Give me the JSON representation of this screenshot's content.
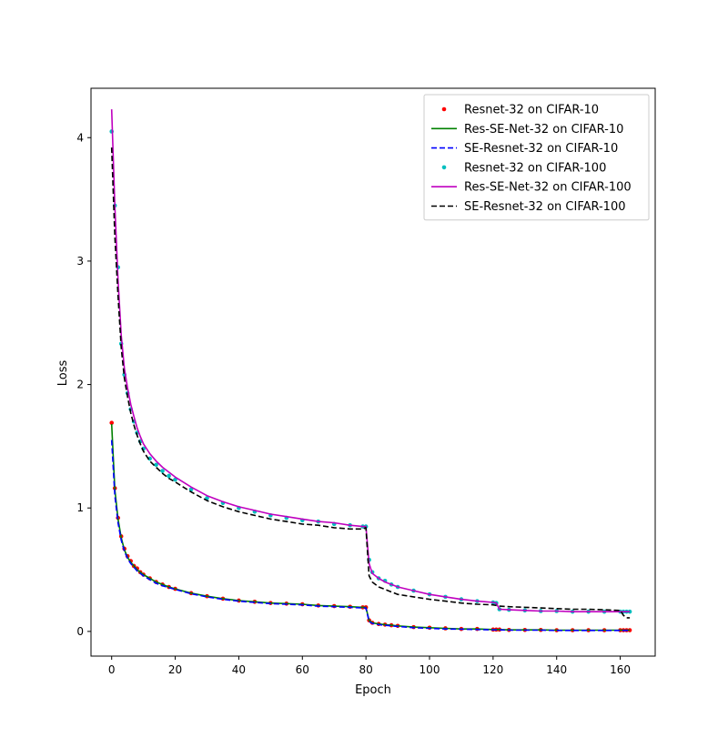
{
  "chart_data": {
    "type": "line",
    "title": "",
    "xlabel": "Epoch",
    "ylabel": "Loss",
    "xlim": [
      -6.5,
      171
    ],
    "ylim": [
      -0.2,
      4.4
    ],
    "xticks": [
      0,
      20,
      40,
      60,
      80,
      100,
      120,
      140,
      160
    ],
    "yticks": [
      0,
      1,
      2,
      3,
      4
    ],
    "grid": false,
    "legend_position": "top-right",
    "x": [
      0,
      1,
      2,
      3,
      4,
      5,
      6,
      7,
      8,
      9,
      10,
      12,
      14,
      16,
      18,
      20,
      25,
      30,
      35,
      40,
      45,
      50,
      55,
      60,
      65,
      70,
      75,
      79,
      80,
      81,
      82,
      84,
      86,
      88,
      90,
      95,
      100,
      105,
      110,
      115,
      120,
      121,
      122,
      125,
      130,
      135,
      140,
      145,
      150,
      155,
      160,
      161,
      162,
      163
    ],
    "series": [
      {
        "name": "Resnet-32 on CIFAR-10",
        "style": "dots",
        "color": "#ff0000",
        "values": [
          1.69,
          1.16,
          0.92,
          0.77,
          0.67,
          0.61,
          0.57,
          0.53,
          0.51,
          0.48,
          0.46,
          0.43,
          0.4,
          0.38,
          0.36,
          0.345,
          0.31,
          0.285,
          0.265,
          0.25,
          0.24,
          0.23,
          0.225,
          0.22,
          0.21,
          0.205,
          0.2,
          0.195,
          0.195,
          0.09,
          0.07,
          0.06,
          0.055,
          0.05,
          0.045,
          0.035,
          0.03,
          0.025,
          0.02,
          0.02,
          0.015,
          0.015,
          0.015,
          0.012,
          0.012,
          0.012,
          0.01,
          0.01,
          0.01,
          0.01,
          0.01,
          0.01,
          0.01,
          0.01
        ]
      },
      {
        "name": "Res-SE-Net-32 on CIFAR-10",
        "style": "solid",
        "color": "#008000",
        "values": [
          1.68,
          1.15,
          0.91,
          0.76,
          0.66,
          0.6,
          0.56,
          0.53,
          0.5,
          0.48,
          0.46,
          0.43,
          0.4,
          0.38,
          0.36,
          0.345,
          0.31,
          0.285,
          0.265,
          0.25,
          0.24,
          0.23,
          0.225,
          0.22,
          0.21,
          0.205,
          0.2,
          0.195,
          0.195,
          0.09,
          0.07,
          0.06,
          0.055,
          0.05,
          0.045,
          0.035,
          0.03,
          0.025,
          0.02,
          0.02,
          0.015,
          0.015,
          0.015,
          0.012,
          0.012,
          0.012,
          0.01,
          0.01,
          0.01,
          0.01,
          0.01,
          0.01,
          0.01,
          0.01
        ]
      },
      {
        "name": "SE-Resnet-32 on CIFAR-10",
        "style": "dashed",
        "color": "#0000ff",
        "values": [
          1.55,
          1.1,
          0.88,
          0.74,
          0.65,
          0.59,
          0.55,
          0.52,
          0.49,
          0.47,
          0.45,
          0.42,
          0.39,
          0.37,
          0.355,
          0.34,
          0.305,
          0.28,
          0.26,
          0.245,
          0.235,
          0.225,
          0.22,
          0.215,
          0.205,
          0.2,
          0.195,
          0.19,
          0.19,
          0.08,
          0.065,
          0.055,
          0.05,
          0.045,
          0.04,
          0.03,
          0.025,
          0.02,
          0.018,
          0.015,
          0.012,
          0.012,
          0.012,
          0.01,
          0.01,
          0.01,
          0.008,
          0.008,
          0.008,
          0.008,
          0.008,
          0.008,
          0.008,
          0.008
        ]
      },
      {
        "name": "Resnet-32 on CIFAR-100",
        "style": "dots",
        "color": "#00bfbf",
        "values": [
          4.05,
          3.45,
          2.95,
          2.33,
          2.08,
          1.93,
          1.8,
          1.7,
          1.61,
          1.54,
          1.48,
          1.4,
          1.35,
          1.3,
          1.26,
          1.23,
          1.15,
          1.08,
          1.04,
          1.0,
          0.97,
          0.94,
          0.92,
          0.9,
          0.89,
          0.87,
          0.86,
          0.85,
          0.85,
          0.58,
          0.48,
          0.43,
          0.41,
          0.38,
          0.36,
          0.33,
          0.3,
          0.28,
          0.26,
          0.245,
          0.235,
          0.23,
          0.18,
          0.175,
          0.17,
          0.165,
          0.165,
          0.16,
          0.16,
          0.16,
          0.16,
          0.16,
          0.16,
          0.16
        ]
      },
      {
        "name": "Res-SE-Net-32 on CIFAR-100",
        "style": "solid",
        "color": "#bf00bf",
        "values": [
          4.23,
          3.45,
          2.85,
          2.4,
          2.13,
          1.97,
          1.84,
          1.74,
          1.65,
          1.58,
          1.52,
          1.44,
          1.38,
          1.33,
          1.29,
          1.25,
          1.17,
          1.1,
          1.05,
          1.01,
          0.98,
          0.95,
          0.93,
          0.91,
          0.89,
          0.88,
          0.86,
          0.85,
          0.85,
          0.55,
          0.47,
          0.43,
          0.4,
          0.38,
          0.36,
          0.33,
          0.3,
          0.28,
          0.26,
          0.245,
          0.235,
          0.23,
          0.18,
          0.175,
          0.17,
          0.165,
          0.165,
          0.16,
          0.16,
          0.16,
          0.16,
          0.16,
          0.16,
          0.16
        ]
      },
      {
        "name": "SE-Resnet-32 on CIFAR-100",
        "style": "dashed",
        "color": "#000000",
        "values": [
          3.92,
          3.2,
          2.72,
          2.3,
          2.05,
          1.9,
          1.77,
          1.67,
          1.59,
          1.52,
          1.46,
          1.38,
          1.33,
          1.28,
          1.24,
          1.21,
          1.13,
          1.06,
          1.01,
          0.97,
          0.94,
          0.91,
          0.89,
          0.87,
          0.86,
          0.84,
          0.83,
          0.83,
          0.84,
          0.45,
          0.4,
          0.36,
          0.34,
          0.32,
          0.3,
          0.28,
          0.26,
          0.245,
          0.23,
          0.22,
          0.215,
          0.21,
          0.205,
          0.2,
          0.195,
          0.19,
          0.185,
          0.18,
          0.18,
          0.175,
          0.17,
          0.13,
          0.11,
          0.11
        ]
      }
    ]
  }
}
